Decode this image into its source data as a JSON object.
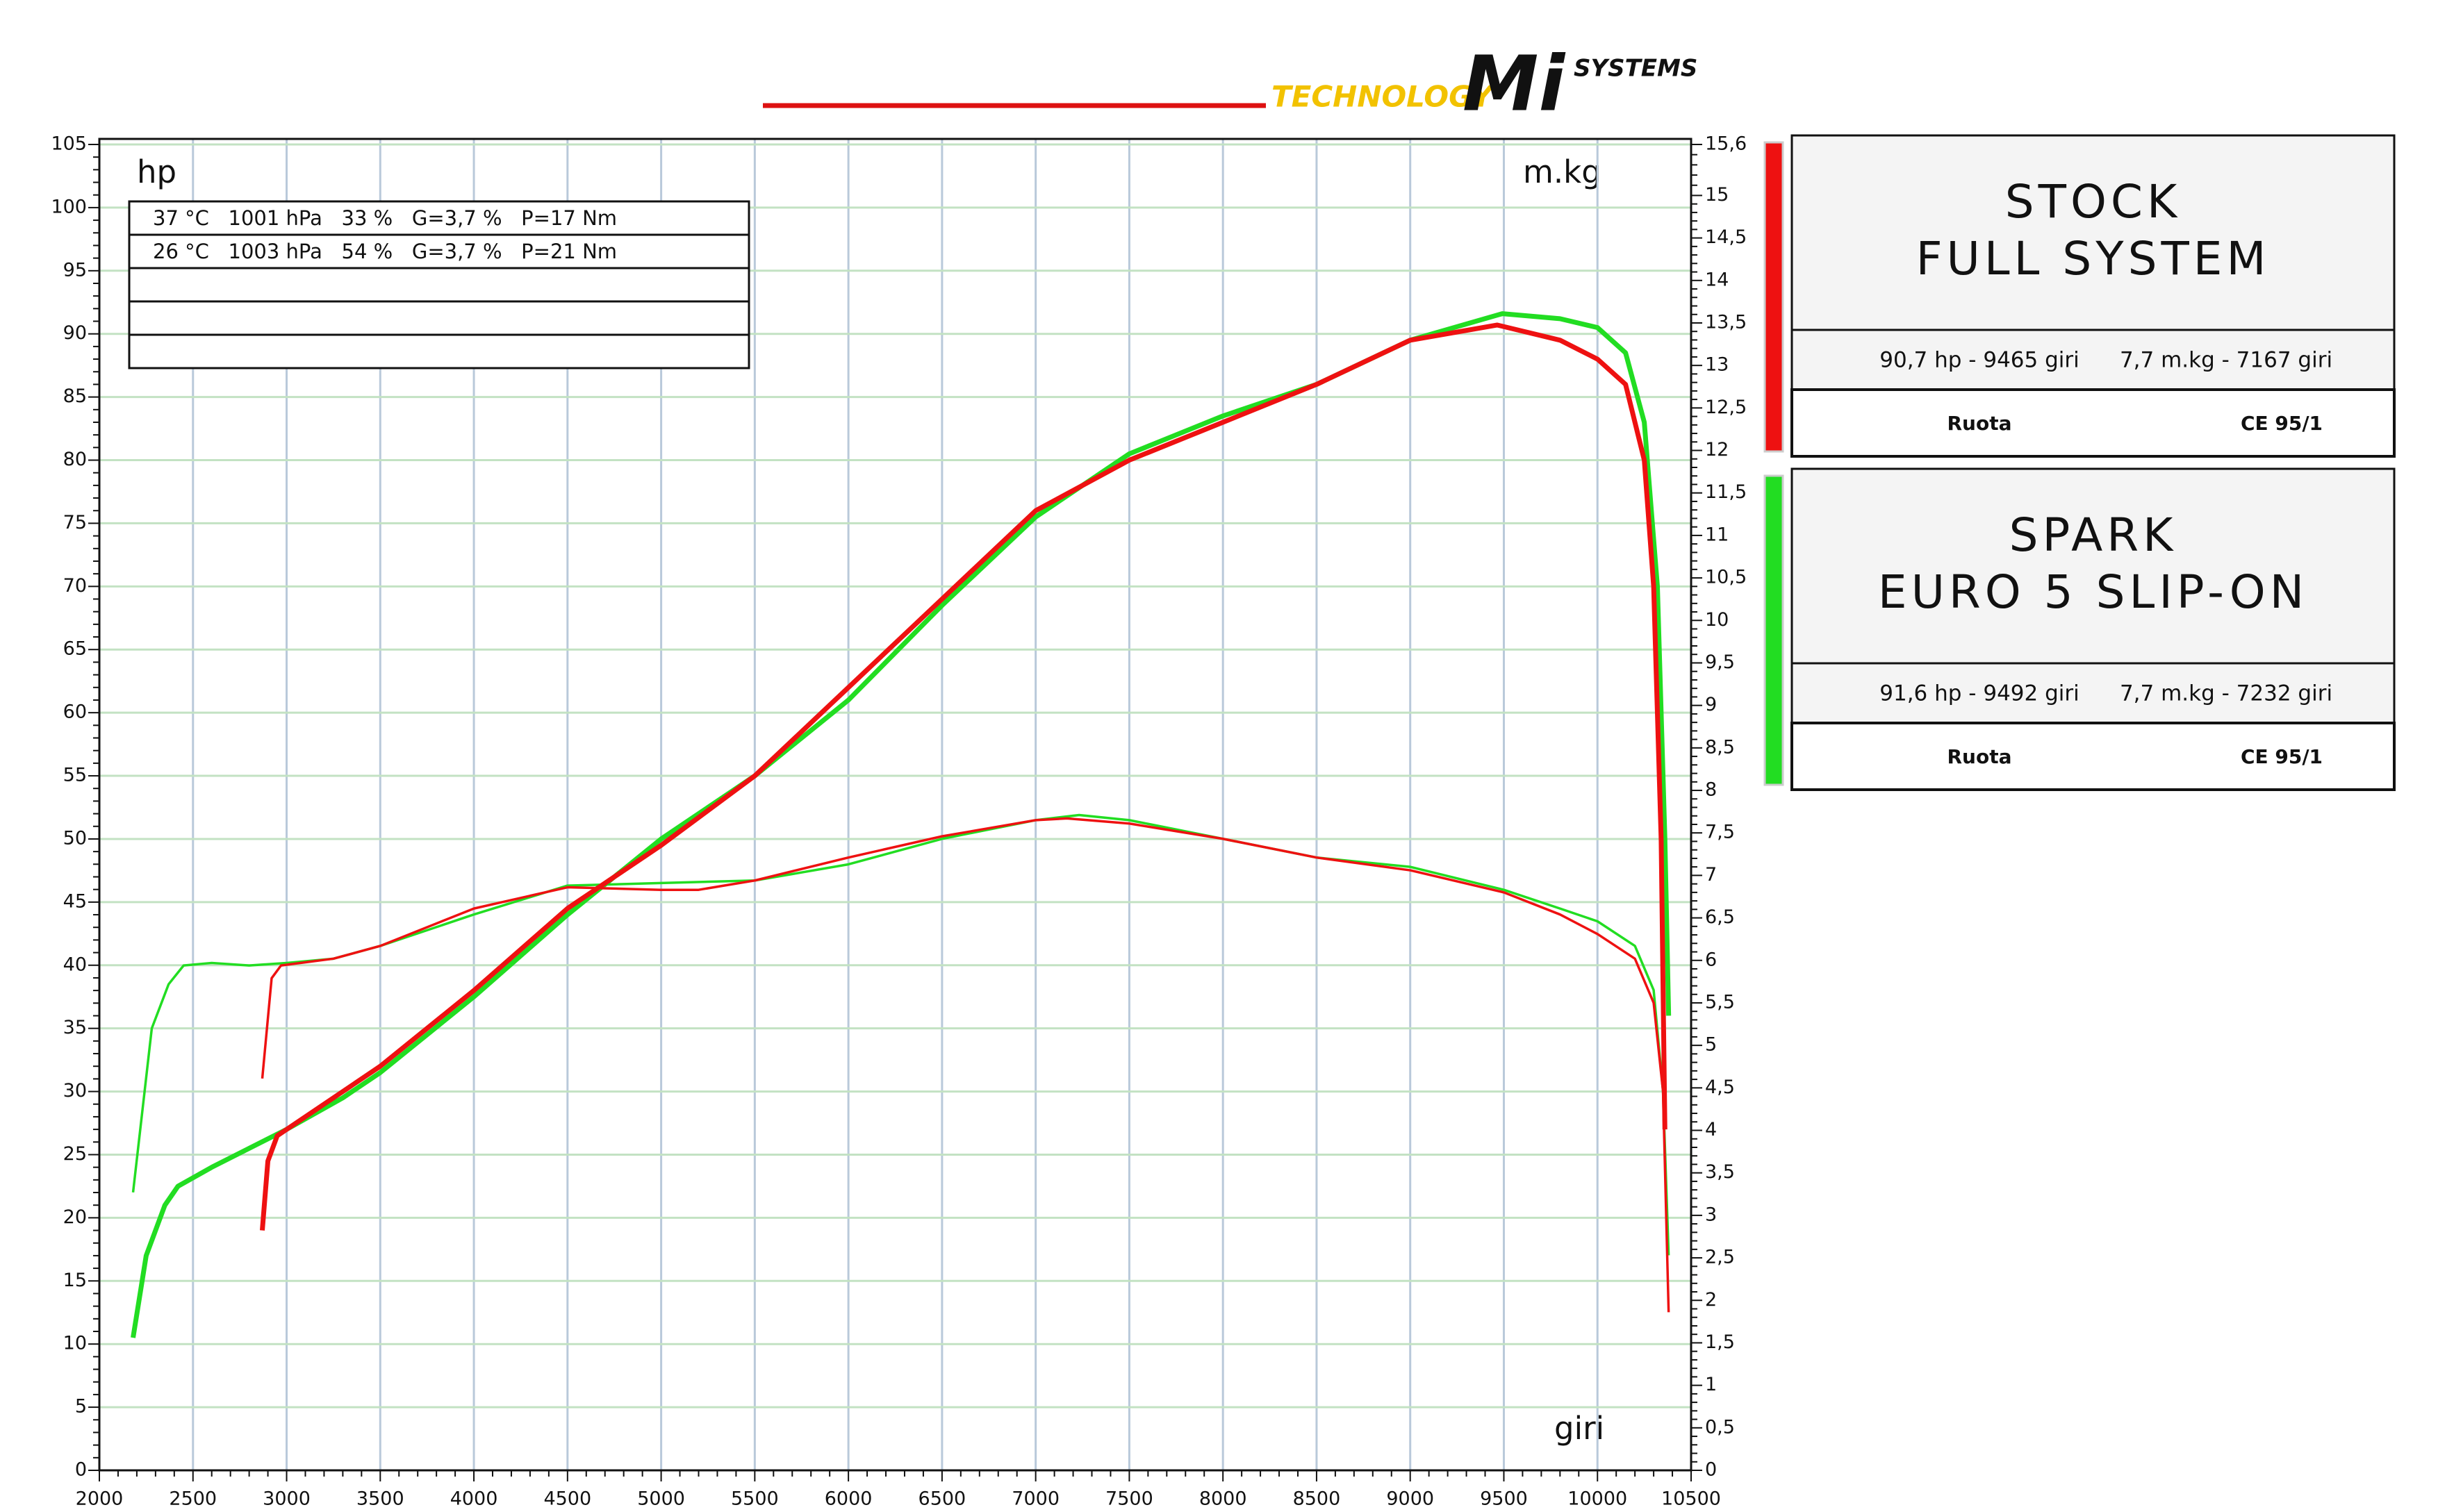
{
  "logo": {
    "tagline": "TECHNOLOGY",
    "brand": "Mi",
    "brand_sub": "SYSTEMS"
  },
  "chart_data": {
    "type": "line",
    "y_label": "hp",
    "y2_label": "m.kg",
    "x_label": "giri",
    "conditions": [
      "37 °C   1001 hPa   33 %   G=3,7 %   P=17 Nm",
      "26 °C   1003 hPa   54 %   G=3,7 %   P=21 Nm"
    ],
    "xlim": [
      2000,
      10500
    ],
    "xticks": [
      2000,
      2500,
      3000,
      3500,
      4000,
      4500,
      5000,
      5500,
      6000,
      6500,
      7000,
      7500,
      8000,
      8500,
      9000,
      9500,
      10000,
      10500
    ],
    "ylim": [
      0,
      105
    ],
    "yticks": [
      0,
      5,
      10,
      15,
      20,
      25,
      30,
      35,
      40,
      45,
      50,
      55,
      60,
      65,
      70,
      75,
      80,
      85,
      90,
      95,
      100,
      105
    ],
    "y2lim": [
      0,
      15.6
    ],
    "y2ticks": [
      0,
      {
        "value": 0.5,
        "label": "0,5"
      },
      1,
      {
        "value": 1.5,
        "label": "1,5"
      },
      2,
      {
        "value": 2.5,
        "label": "2,5"
      },
      3,
      {
        "value": 3.5,
        "label": "3,5"
      },
      4,
      {
        "value": 4.5,
        "label": "4,5"
      },
      5,
      {
        "value": 5.5,
        "label": "5,5"
      },
      6,
      {
        "value": 6.5,
        "label": "6,5"
      },
      7,
      {
        "value": 7.5,
        "label": "7,5"
      },
      8,
      {
        "value": 8.5,
        "label": "8,5"
      },
      9,
      {
        "value": 9.5,
        "label": "9,5"
      },
      10,
      {
        "value": 10.5,
        "label": "10,5"
      },
      11,
      {
        "value": 11.5,
        "label": "11,5"
      },
      12,
      {
        "value": 12.5,
        "label": "12,5"
      },
      13,
      {
        "value": 13.5,
        "label": "13,5"
      },
      14,
      {
        "value": 14.5,
        "label": "14,5"
      },
      15,
      {
        "value": 15.6,
        "label": "15,6"
      }
    ],
    "grid": true,
    "series": [
      {
        "name": [
          "STOCK",
          "FULL SYSTEM"
        ],
        "color": "#ee1111",
        "peaks": [
          "90,7 hp - 9465 giri",
          "7,7 m.kg - 7167 giri"
        ],
        "wheel": "Ruota",
        "norm": "CE 95/1",
        "power": {
          "x": [
            2870,
            2900,
            2950,
            3000,
            3500,
            4000,
            4500,
            5000,
            5500,
            6000,
            6500,
            7000,
            7500,
            8000,
            8500,
            9000,
            9465,
            9800,
            10000,
            10150,
            10250,
            10300,
            10340,
            10360
          ],
          "values": [
            19,
            24.5,
            26.5,
            27,
            32,
            38,
            44.5,
            49.5,
            55,
            62,
            69,
            76,
            80,
            83,
            86,
            89.5,
            90.7,
            89.5,
            88,
            86,
            80,
            70,
            50,
            27
          ]
        },
        "torque": {
          "axis": "y2",
          "x": [
            2870,
            2920,
            2970,
            3250,
            3500,
            4000,
            4500,
            5000,
            5200,
            5500,
            6000,
            6500,
            7000,
            7167,
            7500,
            8000,
            8500,
            9000,
            9500,
            9800,
            10000,
            10200,
            10300,
            10350,
            10380
          ],
          "values": [
            4.61,
            5.79,
            5.94,
            6.02,
            6.17,
            6.61,
            6.86,
            6.83,
            6.83,
            6.94,
            7.21,
            7.46,
            7.65,
            7.67,
            7.61,
            7.43,
            7.21,
            7.06,
            6.8,
            6.54,
            6.31,
            6.02,
            5.5,
            4.46,
            1.86
          ]
        }
      },
      {
        "name": [
          "SPARK",
          "EURO 5 SLIP-ON"
        ],
        "color": "#22dd22",
        "peaks": [
          "91,6 hp - 9492 giri",
          "7,7 m.kg - 7232 giri"
        ],
        "wheel": "Ruota",
        "norm": "CE 95/1",
        "power": {
          "x": [
            2180,
            2250,
            2350,
            2420,
            2600,
            2800,
            3000,
            3300,
            3500,
            4000,
            4500,
            5000,
            5500,
            6000,
            6500,
            7000,
            7500,
            8000,
            8500,
            9000,
            9492,
            9800,
            10000,
            10150,
            10250,
            10320,
            10360,
            10380
          ],
          "values": [
            10.5,
            17,
            21,
            22.5,
            24,
            25.5,
            27,
            29.5,
            31.5,
            37.5,
            44,
            50,
            55,
            61,
            68.5,
            75.5,
            80.5,
            83.5,
            86,
            89.5,
            91.6,
            91.2,
            90.5,
            88.5,
            83,
            70,
            50,
            36
          ]
        },
        "torque": {
          "axis": "y2",
          "x": [
            2180,
            2280,
            2370,
            2450,
            2600,
            2800,
            3000,
            3250,
            3500,
            4000,
            4500,
            5000,
            5500,
            6000,
            6500,
            7000,
            7232,
            7500,
            8000,
            8500,
            9000,
            9500,
            9800,
            10000,
            10200,
            10300,
            10350,
            10380
          ],
          "values": [
            3.27,
            5.2,
            5.72,
            5.94,
            5.97,
            5.94,
            5.97,
            6.02,
            6.17,
            6.54,
            6.88,
            6.91,
            6.94,
            7.13,
            7.43,
            7.65,
            7.71,
            7.65,
            7.43,
            7.21,
            7.1,
            6.83,
            6.61,
            6.46,
            6.17,
            5.65,
            4.46,
            2.53
          ]
        }
      }
    ]
  }
}
